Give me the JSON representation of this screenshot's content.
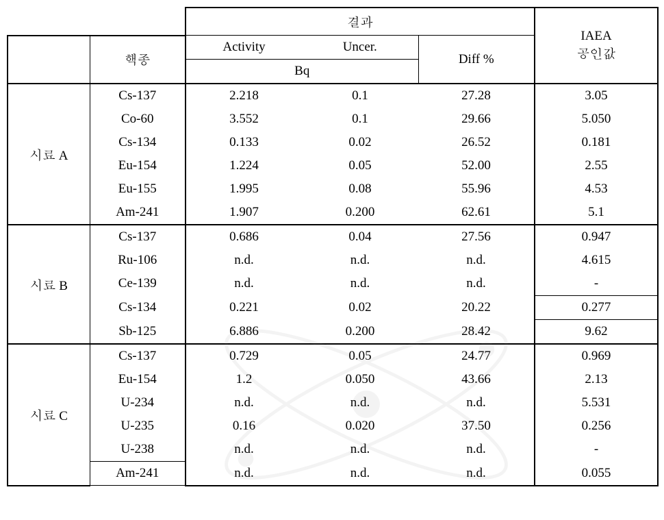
{
  "headers": {
    "nuclide": "핵종",
    "results": "결과",
    "activity": "Activity",
    "uncer": "Uncer.",
    "bq": "Bq",
    "diff": "Diff %",
    "ref_line1": "IAEA",
    "ref_line2": "공인값"
  },
  "groups": [
    {
      "label": "시료 A",
      "rows": [
        {
          "nuclide": "Cs-137",
          "activity": "2.218",
          "uncer": "0.1",
          "diff": "27.28",
          "ref": "3.05"
        },
        {
          "nuclide": "Co-60",
          "activity": "3.552",
          "uncer": "0.1",
          "diff": "29.66",
          "ref": "5.050"
        },
        {
          "nuclide": "Cs-134",
          "activity": "0.133",
          "uncer": "0.02",
          "diff": "26.52",
          "ref": "0.181"
        },
        {
          "nuclide": "Eu-154",
          "activity": "1.224",
          "uncer": "0.05",
          "diff": "52.00",
          "ref": "2.55"
        },
        {
          "nuclide": "Eu-155",
          "activity": "1.995",
          "uncer": "0.08",
          "diff": "55.96",
          "ref": "4.53"
        },
        {
          "nuclide": "Am-241",
          "activity": "1.907",
          "uncer": "0.200",
          "diff": "62.61",
          "ref": "5.1"
        }
      ]
    },
    {
      "label": "시료 B",
      "rows": [
        {
          "nuclide": "Cs-137",
          "activity": "0.686",
          "uncer": "0.04",
          "diff": "27.56",
          "ref": "0.947"
        },
        {
          "nuclide": "Ru-106",
          "activity": "n.d.",
          "uncer": "n.d.",
          "diff": "n.d.",
          "ref": "4.615"
        },
        {
          "nuclide": "Ce-139",
          "activity": "n.d.",
          "uncer": "n.d.",
          "diff": "n.d.",
          "ref": "-"
        },
        {
          "nuclide": "Cs-134",
          "activity": "0.221",
          "uncer": "0.02",
          "diff": "20.22",
          "ref": "0.277",
          "ref_box": true
        },
        {
          "nuclide": "Sb-125",
          "activity": "6.886",
          "uncer": "0.200",
          "diff": "28.42",
          "ref": "9.62",
          "ref_box": true
        }
      ]
    },
    {
      "label": "시료 C",
      "rows": [
        {
          "nuclide": "Cs-137",
          "activity": "0.729",
          "uncer": "0.05",
          "diff": "24.77",
          "ref": "0.969"
        },
        {
          "nuclide": "Eu-154",
          "activity": "1.2",
          "uncer": "0.050",
          "diff": "43.66",
          "ref": "2.13"
        },
        {
          "nuclide": "U-234",
          "activity": "n.d.",
          "uncer": "n.d.",
          "diff": "n.d.",
          "ref": "5.531"
        },
        {
          "nuclide": "U-235",
          "activity": "0.16",
          "uncer": "0.020",
          "diff": "37.50",
          "ref": "0.256"
        },
        {
          "nuclide": "U-238",
          "activity": "n.d.",
          "uncer": "n.d.",
          "diff": "n.d.",
          "ref": "-"
        },
        {
          "nuclide": "Am-241",
          "activity": "n.d.",
          "uncer": "n.d.",
          "diff": "n.d.",
          "ref": "0.055",
          "nuclide_box": true
        }
      ]
    }
  ],
  "colors": {
    "text": "#000000",
    "background": "#ffffff",
    "watermark": "#c9c9c9"
  }
}
